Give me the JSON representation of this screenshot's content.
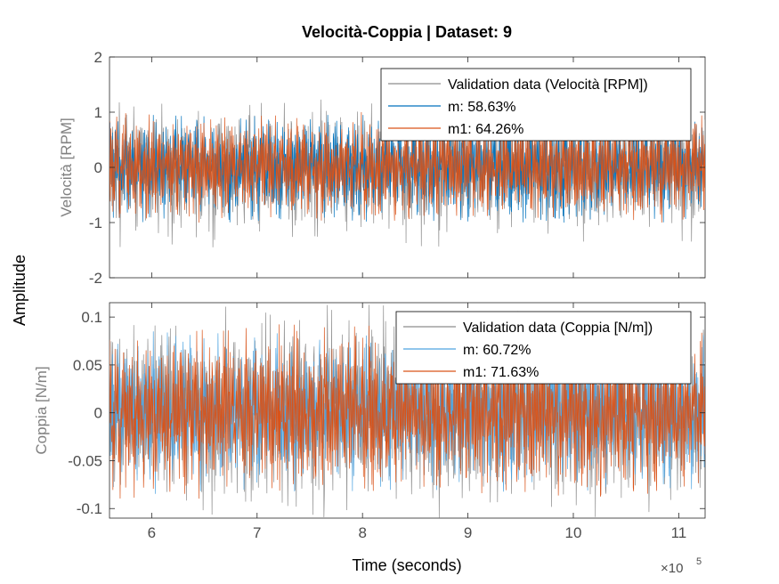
{
  "figure": {
    "title": "Velocità-Coppia | Dataset: 9",
    "ylabel": "Amplitude",
    "xlabel": "Time (seconds)",
    "x_exponent_base": "×10",
    "x_exponent_power": "5"
  },
  "colors": {
    "validation": "#8c8c8c",
    "m": "#0072bd",
    "m1": "#d95319",
    "axes": "#262626",
    "tick_label": "#4d4d4d"
  },
  "chart_data": [
    {
      "type": "line",
      "ylabel": "Velocità [RPM]",
      "xlim": [
        560000,
        1125000
      ],
      "ylim": [
        -2,
        2
      ],
      "x_ticks": [
        600000,
        700000,
        800000,
        900000,
        1000000,
        1100000
      ],
      "x_tick_labels": [
        "",
        "",
        "",
        "",
        "",
        ""
      ],
      "y_ticks": [
        -2,
        -1,
        0,
        1,
        2
      ],
      "y_tick_labels": [
        "-2",
        "-1",
        "0",
        "1",
        "2"
      ],
      "legend_position": "top-right",
      "series": [
        {
          "name": "Validation data (Velocità [RPM])",
          "color": "#8c8c8c",
          "center": 0,
          "amplitude": 1.0,
          "peak_min": -1.45,
          "peak_max": 1.28
        },
        {
          "name": "m: 58.63%",
          "color": "#0072bd",
          "center": 0,
          "amplitude": 0.85,
          "peak_min": -1.0,
          "peak_max": 0.95
        },
        {
          "name": "m1: 64.26%",
          "color": "#d95319",
          "center": 0,
          "amplitude": 0.85,
          "peak_min": -1.0,
          "peak_max": 1.0
        }
      ]
    },
    {
      "type": "line",
      "ylabel": "Coppia [N/m]",
      "xlim": [
        560000,
        1125000
      ],
      "ylim": [
        -0.11,
        0.115
      ],
      "x_ticks": [
        600000,
        700000,
        800000,
        900000,
        1000000,
        1100000
      ],
      "x_tick_labels": [
        "6",
        "7",
        "8",
        "9",
        "10",
        "11"
      ],
      "y_ticks": [
        -0.1,
        -0.05,
        0,
        0.05,
        0.1
      ],
      "y_tick_labels": [
        "-0.1",
        "-0.05",
        "0",
        "0.05",
        "0.1"
      ],
      "legend_position": "top-right",
      "series": [
        {
          "name": "Validation data (Coppia [N/m])",
          "color": "#8c8c8c",
          "center": 0,
          "amplitude": 0.085,
          "peak_min": -0.11,
          "peak_max": 0.113
        },
        {
          "name": "m: 60.72%",
          "color": "#4da3e0",
          "center": 0,
          "amplitude": 0.07,
          "peak_min": -0.085,
          "peak_max": 0.085
        },
        {
          "name": "m1: 71.63%",
          "color": "#d95319",
          "center": 0,
          "amplitude": 0.075,
          "peak_min": -0.09,
          "peak_max": 0.1
        }
      ]
    }
  ]
}
